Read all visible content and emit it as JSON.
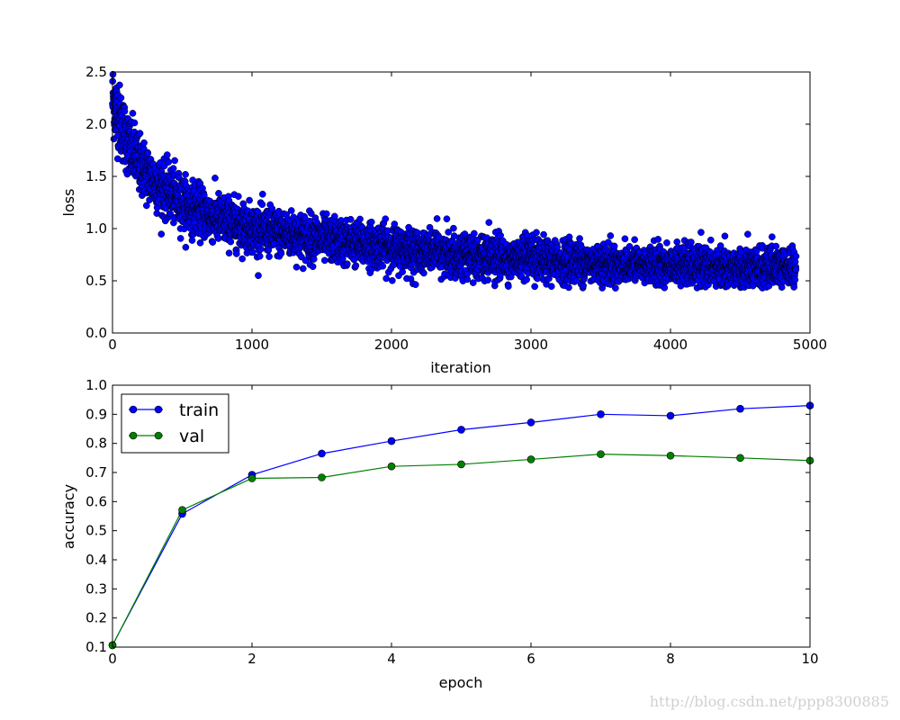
{
  "chart_data": [
    {
      "type": "scatter",
      "title": "",
      "xlabel": "iteration",
      "ylabel": "loss",
      "xlim": [
        0,
        5000
      ],
      "ylim": [
        0.0,
        2.5
      ],
      "xticks": [
        "0",
        "1000",
        "2000",
        "3000",
        "4000",
        "5000"
      ],
      "yticks": [
        "0.0",
        "0.5",
        "1.0",
        "1.5",
        "2.0",
        "2.5"
      ],
      "grid": false,
      "series": [
        {
          "color": "#0000ff",
          "marker": "circle",
          "n_points": 4900,
          "x_range": [
            0,
            4900
          ],
          "trend": [
            [
              0,
              2.25
            ],
            [
              50,
              2.05
            ],
            [
              100,
              1.85
            ],
            [
              200,
              1.6
            ],
            [
              300,
              1.45
            ],
            [
              500,
              1.25
            ],
            [
              700,
              1.12
            ],
            [
              1000,
              1.0
            ],
            [
              1500,
              0.9
            ],
            [
              2000,
              0.82
            ],
            [
              2500,
              0.75
            ],
            [
              3000,
              0.7
            ],
            [
              3500,
              0.67
            ],
            [
              4000,
              0.65
            ],
            [
              4500,
              0.62
            ],
            [
              4900,
              0.62
            ]
          ]
        }
      ]
    },
    {
      "type": "line",
      "title": "",
      "xlabel": "epoch",
      "ylabel": "accuracy",
      "xlim": [
        0,
        10
      ],
      "ylim": [
        0.1,
        1.0
      ],
      "xticks": [
        "0",
        "2",
        "4",
        "6",
        "8",
        "10"
      ],
      "yticks": [
        "0.1",
        "0.2",
        "0.3",
        "0.4",
        "0.5",
        "0.6",
        "0.7",
        "0.8",
        "0.9",
        "1.0"
      ],
      "grid": false,
      "legend_position": "top-left",
      "x": [
        0,
        1,
        2,
        3,
        4,
        5,
        6,
        7,
        8,
        9,
        10
      ],
      "series": [
        {
          "name": "train",
          "color": "#0000ff",
          "values": [
            0.107,
            0.558,
            0.692,
            0.765,
            0.808,
            0.847,
            0.872,
            0.9,
            0.895,
            0.919,
            0.93
          ]
        },
        {
          "name": "val",
          "color": "#008000",
          "values": [
            0.106,
            0.571,
            0.68,
            0.683,
            0.721,
            0.728,
            0.745,
            0.763,
            0.758,
            0.75,
            0.741
          ]
        }
      ]
    }
  ],
  "watermark": "http://blog.csdn.net/ppp8300885"
}
